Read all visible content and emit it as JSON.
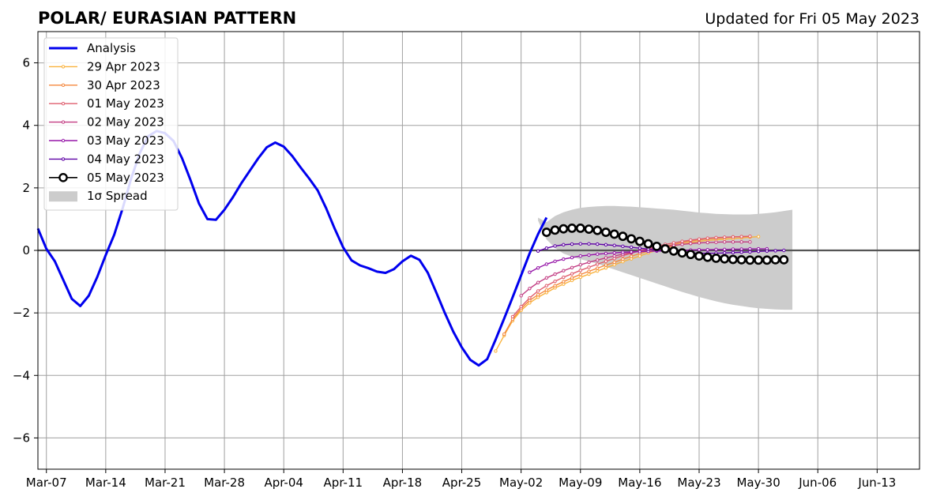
{
  "chart_data": {
    "type": "line",
    "title": "POLAR/ EURASIAN  PATTERN",
    "subtitle": "Updated for Fri 05 May 2023",
    "xlabel": "",
    "ylabel": "",
    "x_axis": {
      "type": "date",
      "range": [
        "2023-03-06",
        "2023-06-18"
      ],
      "ticks": [
        "2023-03-07",
        "2023-03-14",
        "2023-03-21",
        "2023-03-28",
        "2023-04-04",
        "2023-04-11",
        "2023-04-18",
        "2023-04-25",
        "2023-05-02",
        "2023-05-09",
        "2023-05-16",
        "2023-05-23",
        "2023-05-30",
        "2023-06-06",
        "2023-06-13"
      ],
      "tick_labels": [
        "Mar-07",
        "Mar-14",
        "Mar-21",
        "Mar-28",
        "Apr-04",
        "Apr-11",
        "Apr-18",
        "Apr-25",
        "May-02",
        "May-09",
        "May-16",
        "May-23",
        "May-30",
        "Jun-06",
        "Jun-13"
      ]
    },
    "y_axis": {
      "range": [
        -7,
        7
      ],
      "ticks": [
        -6,
        -4,
        -2,
        0,
        2,
        4,
        6
      ],
      "tick_labels": [
        "−6",
        "−4",
        "−2",
        "0",
        "2",
        "4",
        "6"
      ]
    },
    "grid": true,
    "zero_line": 0,
    "legend_placement": "upper-left",
    "analysis": {
      "name": "Analysis",
      "color": "#0000ee",
      "start_date": "2023-03-06",
      "values": [
        0.7,
        0.05,
        -0.35,
        -0.95,
        -1.55,
        -1.78,
        -1.45,
        -0.85,
        -0.15,
        0.5,
        1.35,
        2.3,
        3.1,
        3.65,
        3.82,
        3.75,
        3.5,
        2.95,
        2.25,
        1.5,
        1.0,
        0.98,
        1.3,
        1.7,
        2.15,
        2.55,
        2.95,
        3.3,
        3.45,
        3.32,
        3.02,
        2.65,
        2.3,
        1.92,
        1.35,
        0.7,
        0.1,
        -0.32,
        -0.48,
        -0.57,
        -0.68,
        -0.72,
        -0.6,
        -0.35,
        -0.17,
        -0.3,
        -0.72,
        -1.35,
        -2.0,
        -2.6,
        -3.1,
        -3.5,
        -3.68,
        -3.48,
        -2.85,
        -2.18,
        -1.5,
        -0.8,
        -0.1,
        0.52,
        1.05
      ]
    },
    "forecasts": [
      {
        "name": "29 Apr 2023",
        "color": "#f9b23d",
        "start_date": "2023-04-29",
        "values": [
          -3.22,
          -2.72,
          -2.25,
          -1.92,
          -1.68,
          -1.5,
          -1.35,
          -1.2,
          -1.08,
          -0.96,
          -0.86,
          -0.76,
          -0.66,
          -0.56,
          -0.46,
          -0.36,
          -0.27,
          -0.18,
          -0.08,
          0.0,
          0.07,
          0.14,
          0.2,
          0.25,
          0.29,
          0.32,
          0.34,
          0.36,
          0.38,
          0.4,
          0.42,
          0.44
        ]
      },
      {
        "name": "30 Apr 2023",
        "color": "#f4883f",
        "start_date": "2023-04-30",
        "values": [
          -2.68,
          -2.2,
          -1.86,
          -1.6,
          -1.42,
          -1.27,
          -1.13,
          -1.0,
          -0.88,
          -0.77,
          -0.67,
          -0.57,
          -0.47,
          -0.38,
          -0.28,
          -0.19,
          -0.1,
          -0.02,
          0.06,
          0.13,
          0.19,
          0.25,
          0.3,
          0.34,
          0.37,
          0.39,
          0.41,
          0.43,
          0.44,
          0.45
        ]
      },
      {
        "name": "01 May 2023",
        "color": "#df5e6e",
        "start_date": "2023-05-01",
        "values": [
          -2.12,
          -1.8,
          -1.52,
          -1.3,
          -1.13,
          -0.99,
          -0.86,
          -0.75,
          -0.64,
          -0.54,
          -0.44,
          -0.35,
          -0.26,
          -0.17,
          -0.09,
          -0.01,
          0.06,
          0.13,
          0.19,
          0.24,
          0.29,
          0.33,
          0.36,
          0.39,
          0.41,
          0.42,
          0.43,
          0.44,
          0.45
        ]
      },
      {
        "name": "02 May 2023",
        "color": "#c23b82",
        "start_date": "2023-05-02",
        "values": [
          -1.45,
          -1.22,
          -1.03,
          -0.88,
          -0.76,
          -0.65,
          -0.55,
          -0.46,
          -0.38,
          -0.31,
          -0.24,
          -0.18,
          -0.12,
          -0.07,
          -0.02,
          0.03,
          0.08,
          0.12,
          0.16,
          0.19,
          0.22,
          0.24,
          0.25,
          0.26,
          0.27,
          0.27,
          0.27,
          0.27
        ]
      },
      {
        "name": "03 May 2023",
        "color": "#9616a8",
        "start_date": "2023-05-03",
        "values": [
          -0.7,
          -0.56,
          -0.44,
          -0.35,
          -0.28,
          -0.23,
          -0.18,
          -0.15,
          -0.12,
          -0.1,
          -0.08,
          -0.06,
          -0.05,
          -0.04,
          -0.03,
          -0.02,
          -0.02,
          -0.01,
          0.0,
          0.01,
          0.02,
          0.02,
          0.03,
          0.03,
          0.04,
          0.04,
          0.05,
          0.05,
          0.05
        ]
      },
      {
        "name": "04 May 2023",
        "color": "#5e01a6",
        "start_date": "2023-05-04",
        "values": [
          -0.02,
          0.07,
          0.14,
          0.18,
          0.2,
          0.21,
          0.21,
          0.2,
          0.18,
          0.16,
          0.13,
          0.1,
          0.07,
          0.04,
          0.01,
          -0.02,
          -0.04,
          -0.06,
          -0.08,
          -0.09,
          -0.09,
          -0.09,
          -0.08,
          -0.07,
          -0.06,
          -0.05,
          -0.03,
          -0.02,
          -0.01,
          0.0
        ]
      },
      {
        "name": "05 May 2023",
        "color": "#000000",
        "start_date": "2023-05-05",
        "values": [
          0.58,
          0.65,
          0.69,
          0.71,
          0.71,
          0.68,
          0.64,
          0.58,
          0.52,
          0.45,
          0.37,
          0.29,
          0.21,
          0.13,
          0.05,
          -0.02,
          -0.08,
          -0.13,
          -0.18,
          -0.22,
          -0.25,
          -0.27,
          -0.29,
          -0.3,
          -0.31,
          -0.31,
          -0.31,
          -0.3,
          -0.3
        ]
      }
    ],
    "spread": {
      "name": "1σ Spread",
      "color": "#cccccc",
      "start_date": "2023-05-04",
      "upper": [
        1.05,
        0.9,
        1.1,
        1.22,
        1.3,
        1.36,
        1.39,
        1.41,
        1.42,
        1.42,
        1.41,
        1.4,
        1.38,
        1.36,
        1.34,
        1.32,
        1.3,
        1.27,
        1.24,
        1.21,
        1.19,
        1.17,
        1.16,
        1.15,
        1.15,
        1.15,
        1.17,
        1.19,
        1.22,
        1.26,
        1.3
      ],
      "lower": [
        0.95,
        0.35,
        0.08,
        -0.1,
        -0.2,
        -0.28,
        -0.35,
        -0.43,
        -0.52,
        -0.61,
        -0.7,
        -0.79,
        -0.88,
        -0.97,
        -1.06,
        -1.15,
        -1.24,
        -1.33,
        -1.41,
        -1.49,
        -1.56,
        -1.63,
        -1.69,
        -1.74,
        -1.78,
        -1.82,
        -1.85,
        -1.87,
        -1.89,
        -1.9,
        -1.9
      ]
    }
  }
}
